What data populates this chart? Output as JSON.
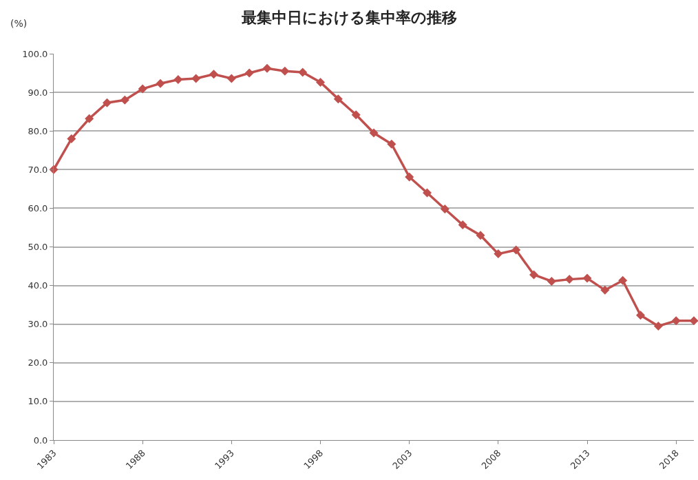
{
  "chart_data": {
    "type": "line",
    "title": "最集中日における集中率の推移",
    "ylabel": "(%)",
    "x": [
      1983,
      1984,
      1985,
      1986,
      1987,
      1988,
      1989,
      1990,
      1991,
      1992,
      1993,
      1994,
      1995,
      1996,
      1997,
      1998,
      1999,
      2000,
      2001,
      2002,
      2003,
      2004,
      2005,
      2006,
      2007,
      2008,
      2009,
      2010,
      2011,
      2012,
      2013,
      2014,
      2015,
      2016,
      2017,
      2018,
      2019
    ],
    "series": [
      {
        "color": "#c0504d",
        "values": [
          70.0,
          78.0,
          83.2,
          87.3,
          88.0,
          90.9,
          92.3,
          93.3,
          93.6,
          94.7,
          93.6,
          95.0,
          96.2,
          95.5,
          95.2,
          92.6,
          88.3,
          84.2,
          79.5,
          76.6,
          68.1,
          64.0,
          59.8,
          55.7,
          53.0,
          48.2,
          49.2,
          42.8,
          41.1,
          41.6,
          41.9,
          38.8,
          41.3,
          32.3,
          29.5,
          30.9,
          30.9
        ]
      }
    ],
    "xlim": [
      1983,
      2019
    ],
    "xticks": [
      1983,
      1988,
      1993,
      1998,
      2003,
      2008,
      2013,
      2018
    ],
    "ylim": [
      0,
      100
    ],
    "yticks": [
      {
        "value": 0,
        "label": "0.0"
      },
      {
        "value": 10,
        "label": "10.0"
      },
      {
        "value": 20,
        "label": "20.0"
      },
      {
        "value": 30,
        "label": "30.0"
      },
      {
        "value": 40,
        "label": "40.0"
      },
      {
        "value": 50,
        "label": "50.0"
      },
      {
        "value": 60,
        "label": "60.0"
      },
      {
        "value": 70,
        "label": "70.0"
      },
      {
        "value": 80,
        "label": "80.0"
      },
      {
        "value": 90,
        "label": "90.0"
      },
      {
        "value": 100,
        "label": "100.0"
      }
    ],
    "grid": "y",
    "legend": false,
    "marker": "diamond",
    "line_style": "solid"
  }
}
